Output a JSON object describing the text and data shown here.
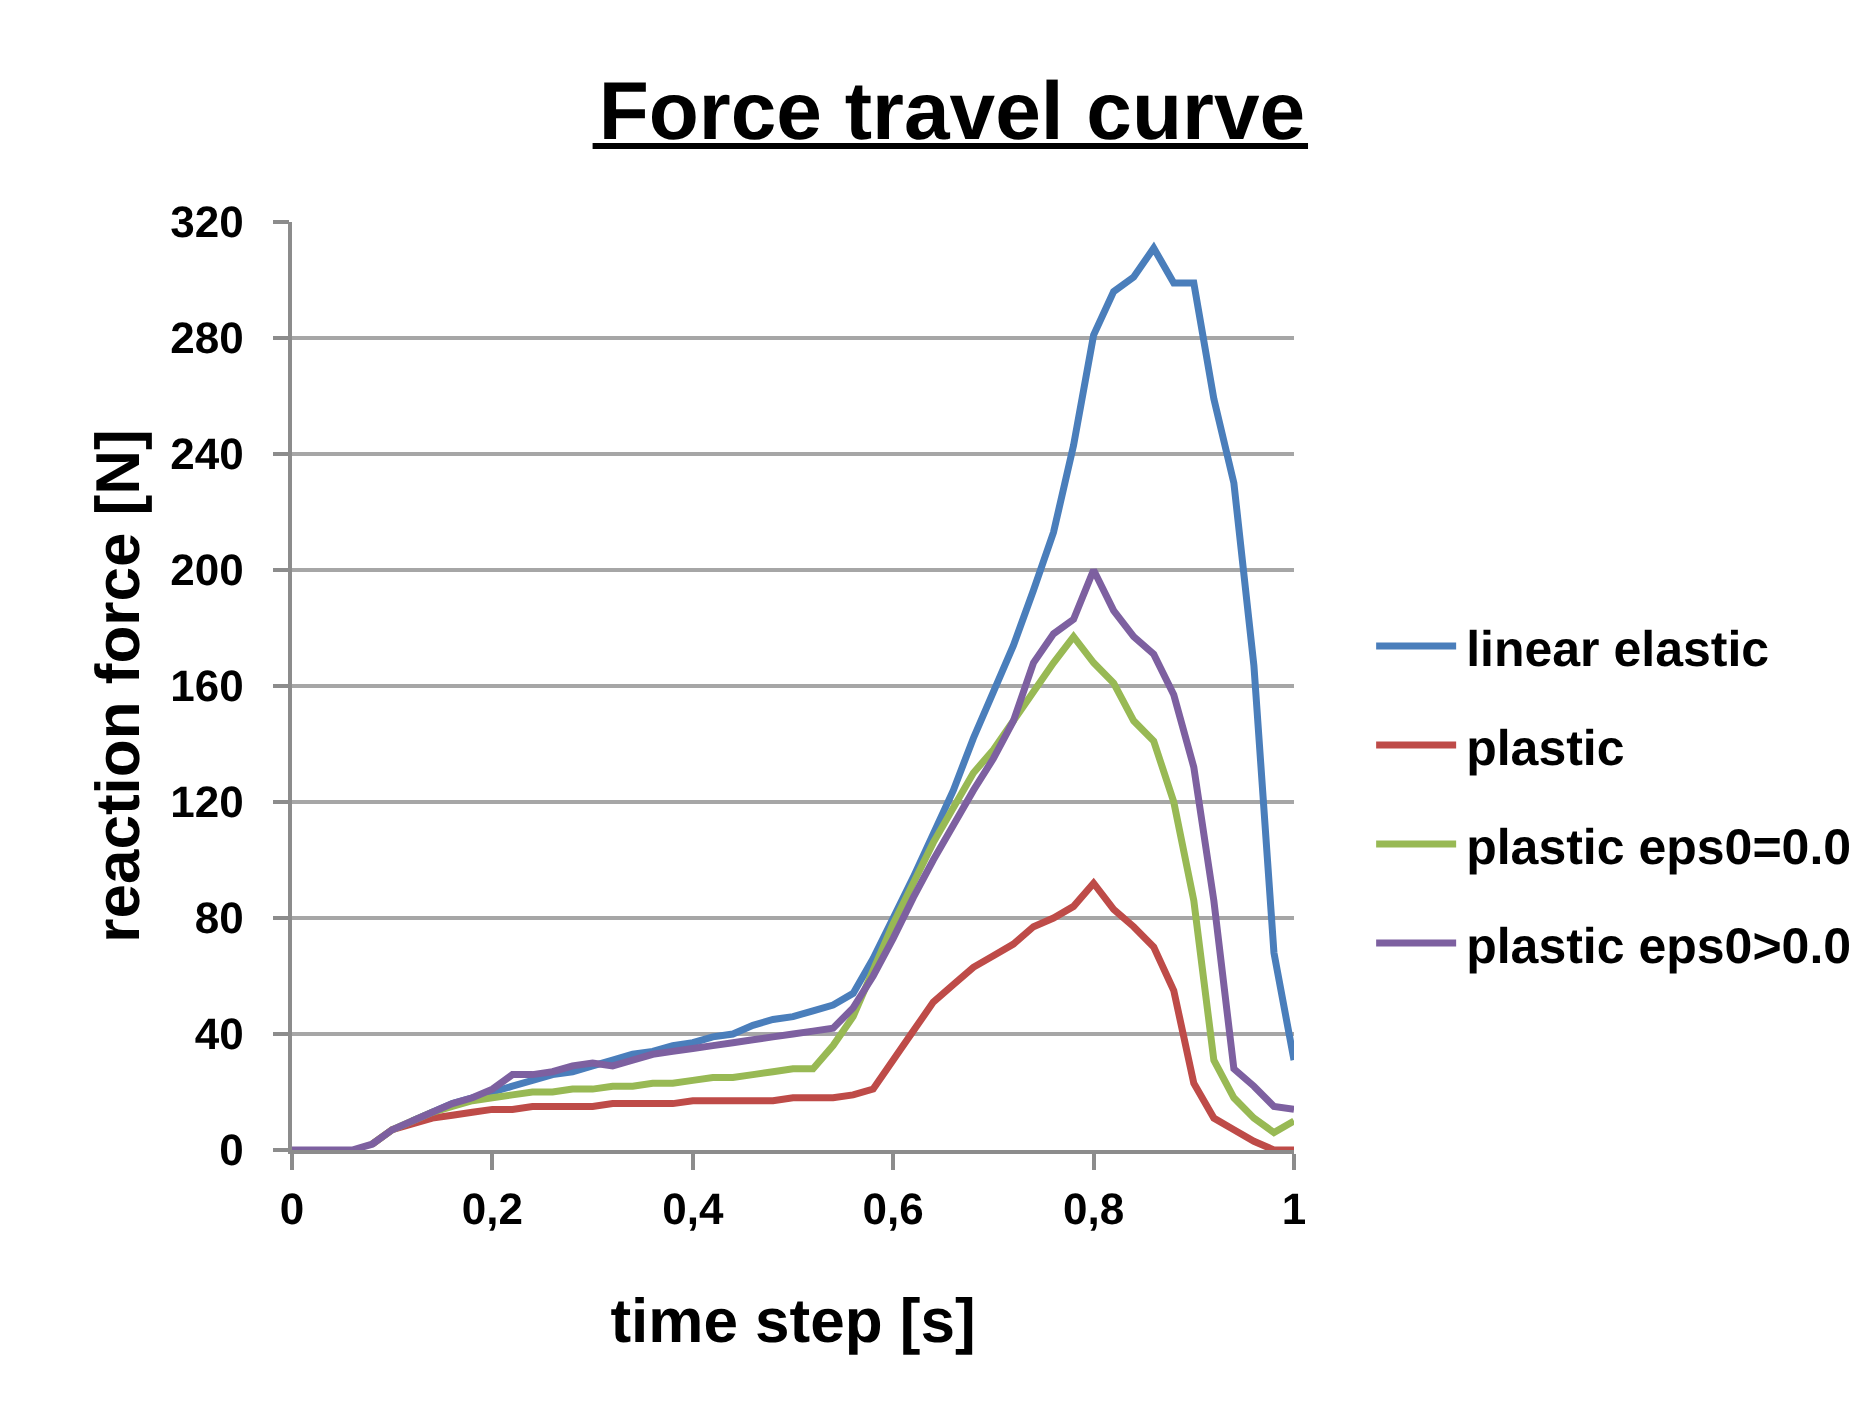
{
  "chart_data": {
    "type": "line",
    "title": "Force travel curve",
    "xlabel": "time step [s]",
    "ylabel": "reaction force [N]",
    "x": [
      0,
      0.02,
      0.04,
      0.06,
      0.08,
      0.1,
      0.12,
      0.14,
      0.16,
      0.18,
      0.2,
      0.22,
      0.24,
      0.26,
      0.28,
      0.3,
      0.32,
      0.34,
      0.36,
      0.38,
      0.4,
      0.42,
      0.44,
      0.46,
      0.48,
      0.5,
      0.52,
      0.54,
      0.56,
      0.58,
      0.6,
      0.62,
      0.64,
      0.66,
      0.68,
      0.7,
      0.72,
      0.74,
      0.76,
      0.78,
      0.8,
      0.82,
      0.84,
      0.86,
      0.88,
      0.9,
      0.92,
      0.94,
      0.96,
      0.98,
      1
    ],
    "series": [
      {
        "name": "linear elastic",
        "color": "#4a7ebb",
        "values": [
          null,
          null,
          null,
          null,
          null,
          null,
          10,
          13,
          16,
          18,
          20,
          22,
          24,
          26,
          27,
          29,
          31,
          33,
          34,
          36,
          37,
          39,
          40,
          43,
          45,
          46,
          48,
          50,
          54,
          66,
          80,
          94,
          109,
          124,
          142,
          158,
          174,
          193,
          213,
          243,
          281,
          296,
          301,
          311,
          299,
          299,
          259,
          230,
          167,
          68,
          31
        ]
      },
      {
        "name": "plastic",
        "color": "#be4b48",
        "values": [
          null,
          null,
          null,
          null,
          2,
          7,
          9,
          11,
          12,
          13,
          14,
          14,
          15,
          15,
          15,
          15,
          16,
          16,
          16,
          16,
          17,
          17,
          17,
          17,
          17,
          18,
          18,
          18,
          19,
          21,
          31,
          41,
          51,
          57,
          63,
          67,
          71,
          77,
          80,
          84,
          92,
          83,
          77,
          70,
          55,
          23,
          11,
          7,
          3,
          0,
          0
        ]
      },
      {
        "name": "plastic eps0=0.0",
        "color": "#98b954",
        "values": [
          null,
          null,
          null,
          null,
          2,
          7,
          10,
          13,
          15,
          17,
          18,
          19,
          20,
          20,
          21,
          21,
          22,
          22,
          23,
          23,
          24,
          25,
          25,
          26,
          27,
          28,
          28,
          36,
          46,
          62,
          78,
          92,
          106,
          118,
          130,
          138,
          148,
          158,
          168,
          177,
          168,
          161,
          148,
          141,
          120,
          86,
          31,
          18,
          11,
          6,
          10
        ]
      },
      {
        "name": "plastic eps0>0.0",
        "color": "#7d60a0",
        "values": [
          0,
          0,
          0,
          0,
          2,
          7,
          10,
          13,
          16,
          18,
          21,
          26,
          26,
          27,
          29,
          30,
          29,
          31,
          33,
          34,
          35,
          36,
          37,
          38,
          39,
          40,
          41,
          42,
          49,
          60,
          73,
          87,
          100,
          112,
          124,
          135,
          148,
          168,
          178,
          183,
          200,
          186,
          177,
          171,
          157,
          132,
          86,
          28,
          22,
          15,
          14
        ]
      }
    ],
    "xlim": [
      0,
      1
    ],
    "xticks": [
      0,
      {
        "value": 0.2,
        "label": "0,2"
      },
      {
        "value": 0.4,
        "label": "0,4"
      },
      {
        "value": 0.6,
        "label": "0,6"
      },
      {
        "value": 0.8,
        "label": "0,8"
      },
      1
    ],
    "ylim": [
      0,
      320
    ],
    "yticks": [
      0,
      40,
      80,
      120,
      160,
      200,
      240,
      280,
      320
    ],
    "grid": "y",
    "legend": "right",
    "line_style": "solid"
  }
}
